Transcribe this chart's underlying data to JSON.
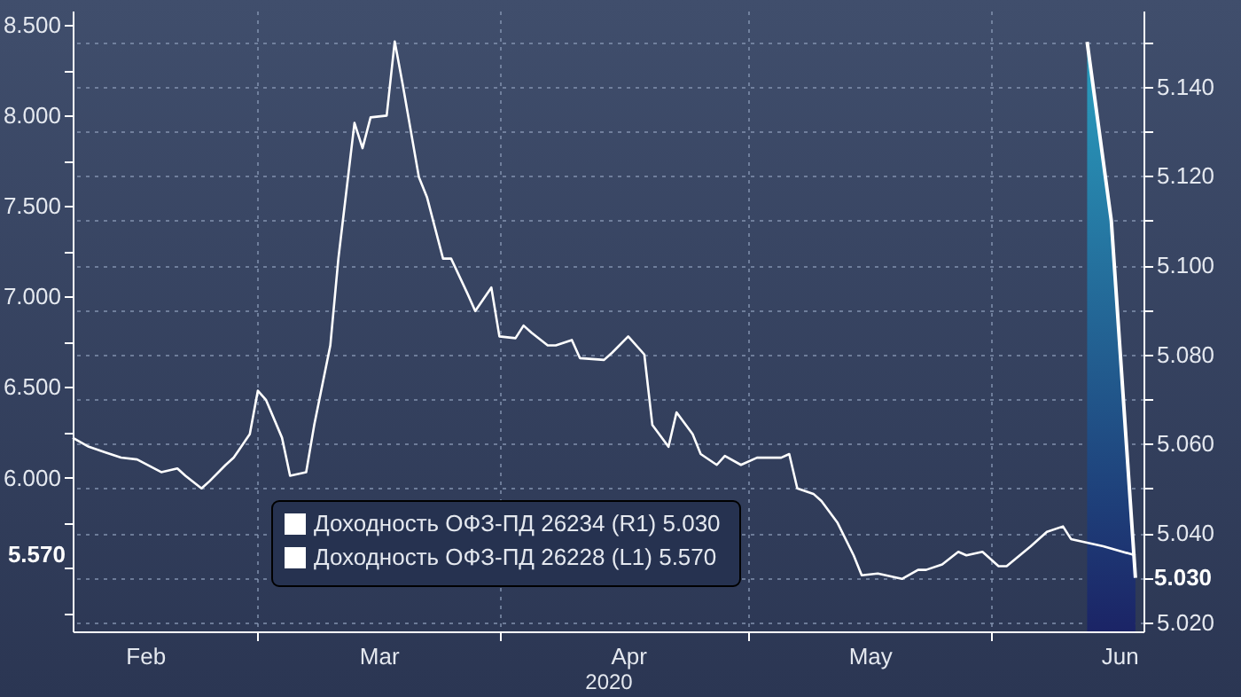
{
  "chart_data": {
    "type": "line",
    "xlabel": "2020",
    "xlim": [
      "2020-01-23",
      "2020-06-04"
    ],
    "xticks": [
      {
        "value": "2020-02-01",
        "label": "Feb"
      },
      {
        "value": "2020-02-15",
        "label": null
      },
      {
        "value": "2020-03-01",
        "label": "Mar"
      },
      {
        "value": "2020-03-16",
        "label": null
      },
      {
        "value": "2020-04-01",
        "label": "Apr"
      },
      {
        "value": "2020-04-16",
        "label": null
      },
      {
        "value": "2020-05-01",
        "label": "May"
      },
      {
        "value": "2020-05-16",
        "label": null
      },
      {
        "value": "2020-06-01",
        "label": "Jun"
      }
    ],
    "ylim": [
      5.15,
      8.58
    ],
    "yticks": [
      {
        "value": 5.25,
        "label": null
      },
      {
        "value": 5.5,
        "label": null
      },
      {
        "value": 5.75,
        "label": null
      },
      {
        "value": 6,
        "label": "6.000"
      },
      {
        "value": 6.25,
        "label": null
      },
      {
        "value": 6.5,
        "label": "6.500"
      },
      {
        "value": 6.75,
        "label": null
      },
      {
        "value": 7,
        "label": "7.000"
      },
      {
        "value": 7.25,
        "label": null
      },
      {
        "value": 7.5,
        "label": "7.500"
      },
      {
        "value": 7.75,
        "label": null
      },
      {
        "value": 8,
        "label": "8.000"
      },
      {
        "value": 8.25,
        "label": null
      },
      {
        "value": 8.5,
        "label": "8.500"
      }
    ],
    "y2lim": [
      5.018,
      5.157
    ],
    "y2ticks": [
      {
        "value": 5.02,
        "label": "5.020"
      },
      {
        "value": 5.03,
        "label": null
      },
      {
        "value": 5.04,
        "label": "5.040"
      },
      {
        "value": 5.05,
        "label": null
      },
      {
        "value": 5.06,
        "label": "5.060"
      },
      {
        "value": 5.07,
        "label": null
      },
      {
        "value": 5.08,
        "label": "5.080"
      },
      {
        "value": 5.09,
        "label": null
      },
      {
        "value": 5.1,
        "label": "5.100"
      },
      {
        "value": 5.11,
        "label": null
      },
      {
        "value": 5.12,
        "label": "5.120"
      },
      {
        "value": 5.13,
        "label": null
      },
      {
        "value": 5.14,
        "label": "5.140"
      },
      {
        "value": 5.15,
        "label": null
      }
    ],
    "annotations": [
      "5.030",
      "5.570"
    ],
    "grid": true,
    "legend": "bottom",
    "marker": "none",
    "line_style": "solid",
    "series": [
      {
        "name": "Доходность ОФЗ-ПД 26234 (R1)  5.030",
        "type": "area",
        "axis": "y2",
        "color": "#ffffff",
        "x": [
          "2020-05-28",
          "2020-05-31",
          "2020-06-03"
        ],
        "values": [
          5.15,
          5.11,
          5.03
        ]
      },
      {
        "name": "Доходность ОФЗ-ПД 26228 (L1)  5.570",
        "type": "line",
        "color": "#ffffff",
        "x": [
          "2020-01-23",
          "2020-01-25",
          "2020-01-27",
          "2020-01-29",
          "2020-01-31",
          "2020-02-03",
          "2020-02-05",
          "2020-02-06",
          "2020-02-08",
          "2020-02-09",
          "2020-02-11",
          "2020-02-12",
          "2020-02-14",
          "2020-02-15",
          "2020-02-16",
          "2020-02-18",
          "2020-02-19",
          "2020-02-21",
          "2020-02-22",
          "2020-02-24",
          "2020-02-25",
          "2020-02-27",
          "2020-02-28",
          "2020-02-29",
          "2020-03-02",
          "2020-03-03",
          "2020-03-04",
          "2020-03-06",
          "2020-03-07",
          "2020-03-09",
          "2020-03-10",
          "2020-03-12",
          "2020-03-13",
          "2020-03-15",
          "2020-03-16",
          "2020-03-18",
          "2020-03-19",
          "2020-03-20",
          "2020-03-22",
          "2020-03-23",
          "2020-03-25",
          "2020-03-26",
          "2020-03-29",
          "2020-03-30",
          "2020-04-01",
          "2020-04-03",
          "2020-04-04",
          "2020-04-06",
          "2020-04-07",
          "2020-04-09",
          "2020-04-10",
          "2020-04-12",
          "2020-04-13",
          "2020-04-15",
          "2020-04-17",
          "2020-04-20",
          "2020-04-21",
          "2020-04-22",
          "2020-04-24",
          "2020-04-25",
          "2020-04-27",
          "2020-04-29",
          "2020-04-30",
          "2020-05-02",
          "2020-05-05",
          "2020-05-07",
          "2020-05-08",
          "2020-05-10",
          "2020-05-12",
          "2020-05-13",
          "2020-05-15",
          "2020-05-17",
          "2020-05-18",
          "2020-05-21",
          "2020-05-23",
          "2020-05-25",
          "2020-05-26",
          "2020-05-28",
          "2020-05-30",
          "2020-06-03"
        ],
        "values": [
          6.22,
          6.17,
          6.14,
          6.11,
          6.1,
          6.03,
          6.05,
          6.01,
          5.94,
          5.98,
          6.07,
          6.11,
          6.24,
          6.48,
          6.43,
          6.22,
          6.01,
          6.03,
          6.29,
          6.73,
          7.21,
          7.96,
          7.82,
          7.99,
          8.0,
          8.41,
          8.17,
          7.66,
          7.55,
          7.21,
          7.21,
          7.02,
          6.92,
          7.05,
          6.78,
          6.77,
          6.84,
          6.8,
          6.73,
          6.73,
          6.76,
          6.66,
          6.65,
          6.69,
          6.78,
          6.68,
          6.29,
          6.17,
          6.36,
          6.24,
          6.13,
          6.07,
          6.12,
          6.07,
          6.11,
          6.11,
          6.13,
          5.94,
          5.91,
          5.87,
          5.75,
          5.57,
          5.46,
          5.47,
          5.44,
          5.49,
          5.49,
          5.52,
          5.59,
          5.57,
          5.59,
          5.51,
          5.51,
          5.62,
          5.7,
          5.73,
          5.66,
          5.64,
          5.62,
          5.57
        ]
      }
    ]
  }
}
